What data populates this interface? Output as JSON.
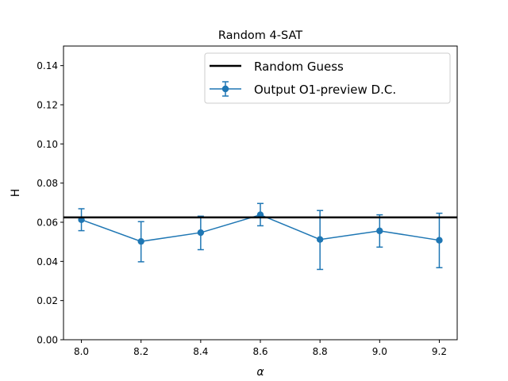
{
  "chart_data": {
    "type": "line",
    "title": "Random 4-SAT",
    "xlabel": "α",
    "ylabel": "H",
    "xlim": [
      7.94,
      9.26
    ],
    "ylim": [
      0.0,
      0.15
    ],
    "xticks": [
      8.0,
      8.2,
      8.4,
      8.6,
      8.8,
      9.0,
      9.2
    ],
    "xtick_labels": [
      "8.0",
      "8.2",
      "8.4",
      "8.6",
      "8.8",
      "9.0",
      "9.2"
    ],
    "yticks": [
      0.0,
      0.02,
      0.04,
      0.06,
      0.08,
      0.1,
      0.12,
      0.14
    ],
    "ytick_labels": [
      "0.00",
      "0.02",
      "0.04",
      "0.06",
      "0.08",
      "0.10",
      "0.12",
      "0.14"
    ],
    "grid": false,
    "legend_position": "top-right",
    "reference_line": {
      "name": "Random Guess",
      "y": 0.0625,
      "color": "#000000"
    },
    "series": [
      {
        "name": "Output O1-preview  D.C.",
        "color": "#1f77b4",
        "x": [
          8.0,
          8.2,
          8.4,
          8.6,
          8.8,
          9.0,
          9.2
        ],
        "y": [
          0.0613,
          0.0502,
          0.0547,
          0.0638,
          0.0512,
          0.0556,
          0.0508
        ],
        "yerr_low": [
          0.0557,
          0.0398,
          0.046,
          0.0582,
          0.0359,
          0.0473,
          0.0368
        ],
        "yerr_high": [
          0.0669,
          0.0603,
          0.0631,
          0.0696,
          0.066,
          0.0638,
          0.0646
        ]
      }
    ]
  }
}
